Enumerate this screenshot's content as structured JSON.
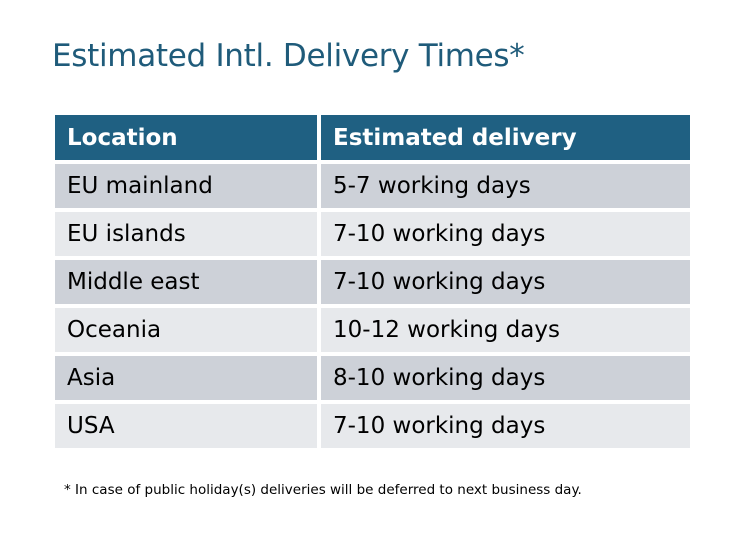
{
  "title": "Estimated Intl. Delivery Times*",
  "table": {
    "headers": [
      "Location",
      "Estimated delivery"
    ],
    "rows": [
      [
        "EU mainland",
        "5-7 working days"
      ],
      [
        "EU islands",
        "7-10 working days"
      ],
      [
        "Middle east",
        "7-10 working days"
      ],
      [
        "Oceania",
        "10-12 working days"
      ],
      [
        "Asia",
        "8-10 working days"
      ],
      [
        "USA",
        "7-10 working days"
      ]
    ]
  },
  "footnote": "* In case of public holiday(s) deliveries will be deferred to next business day.",
  "colors": {
    "header": "#1f6082",
    "row_dark": "#cdd1d8",
    "row_light": "#e7e9ec",
    "title": "#1f5b7a"
  }
}
